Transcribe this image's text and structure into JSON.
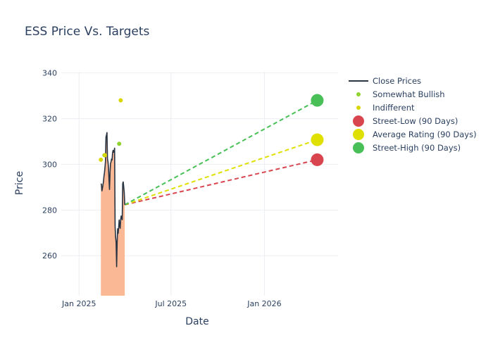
{
  "chart_data": {
    "type": "line",
    "title": "ESS Price Vs. Targets",
    "xlabel": "Date",
    "ylabel": "Price",
    "x_range": [
      "2024-11-27",
      "2026-05-26"
    ],
    "y_range": [
      242.5,
      340.5
    ],
    "x_ticks": [
      {
        "date": "2025-01-01",
        "label": "Jan 2025"
      },
      {
        "date": "2025-07-01",
        "label": "Jul 2025"
      },
      {
        "date": "2026-01-01",
        "label": "Jan 2026"
      }
    ],
    "y_ticks": [
      260,
      280,
      300,
      320,
      340
    ],
    "grid": true,
    "legend_position": "right",
    "colors": {
      "close": "#2a3342",
      "fill": "#fbb895",
      "somewhat_bullish": "#90d330",
      "indifferent": "#d9d700",
      "street_low": "#d9454f",
      "average": "#dfe000",
      "street_high": "#48c057"
    },
    "series": [
      {
        "name": "Close Prices",
        "kind": "line",
        "points": [
          [
            "2025-02-13",
            291.5
          ],
          [
            "2025-02-14",
            291.3
          ],
          [
            "2025-02-15",
            288.4
          ],
          [
            "2025-02-16",
            289.4
          ],
          [
            "2025-02-17",
            290.9
          ],
          [
            "2025-02-18",
            292.3
          ],
          [
            "2025-02-19",
            294.7
          ],
          [
            "2025-02-20",
            296.2
          ],
          [
            "2025-02-21",
            298.5
          ],
          [
            "2025-02-22",
            301.1
          ],
          [
            "2025-02-23",
            311.9
          ],
          [
            "2025-02-24",
            312.8
          ],
          [
            "2025-02-25",
            313.9
          ],
          [
            "2025-02-26",
            302.4
          ],
          [
            "2025-02-27",
            301.0
          ],
          [
            "2025-02-28",
            298.5
          ],
          [
            "2025-03-01",
            293.3
          ],
          [
            "2025-03-02",
            289.0
          ],
          [
            "2025-03-03",
            296.5
          ],
          [
            "2025-03-04",
            300.4
          ],
          [
            "2025-03-05",
            301.1
          ],
          [
            "2025-03-06",
            302.3
          ],
          [
            "2025-03-07",
            301.9
          ],
          [
            "2025-03-08",
            305.0
          ],
          [
            "2025-03-09",
            306.1
          ],
          [
            "2025-03-10",
            305.3
          ],
          [
            "2025-03-11",
            305.6
          ],
          [
            "2025-03-12",
            307.1
          ],
          [
            "2025-03-13",
            272.7
          ],
          [
            "2025-03-14",
            268.1
          ],
          [
            "2025-03-15",
            265.9
          ],
          [
            "2025-03-16",
            255.2
          ],
          [
            "2025-03-17",
            265.7
          ],
          [
            "2025-03-18",
            271.8
          ],
          [
            "2025-03-19",
            269.8
          ],
          [
            "2025-03-20",
            272.3
          ],
          [
            "2025-03-21",
            275.6
          ],
          [
            "2025-03-22",
            273.3
          ],
          [
            "2025-03-23",
            272.0
          ],
          [
            "2025-03-24",
            275.9
          ],
          [
            "2025-03-25",
            277.4
          ],
          [
            "2025-03-26",
            276.2
          ],
          [
            "2025-03-27",
            275.8
          ],
          [
            "2025-03-28",
            291.6
          ],
          [
            "2025-03-29",
            292.3
          ],
          [
            "2025-03-30",
            290.1
          ],
          [
            "2025-03-31",
            287.6
          ],
          [
            "2025-04-01",
            282.3
          ]
        ]
      },
      {
        "name": "Somewhat Bullish",
        "kind": "markers",
        "points": [
          [
            "2025-02-20",
            304.0
          ],
          [
            "2025-03-21",
            309.0
          ]
        ]
      },
      {
        "name": "Indifferent",
        "kind": "markers",
        "points": [
          [
            "2025-02-13",
            302.0
          ],
          [
            "2025-02-21",
            304.0
          ],
          [
            "2025-03-24",
            328.0
          ]
        ]
      },
      {
        "name": "Street-Low (90 Days)",
        "kind": "target",
        "from": [
          "2025-04-01",
          282.3
        ],
        "to": [
          "2026-04-15",
          302.0
        ]
      },
      {
        "name": "Average Rating (90 Days)",
        "kind": "target",
        "from": [
          "2025-04-01",
          282.3
        ],
        "to": [
          "2026-04-15",
          310.75
        ]
      },
      {
        "name": "Street-High (90 Days)",
        "kind": "target",
        "from": [
          "2025-04-01",
          282.3
        ],
        "to": [
          "2026-04-15",
          328.0
        ]
      }
    ],
    "legend": [
      "Close Prices",
      "Somewhat Bullish",
      "Indifferent",
      "Street-Low (90 Days)",
      "Average Rating (90 Days)",
      "Street-High (90 Days)"
    ]
  }
}
